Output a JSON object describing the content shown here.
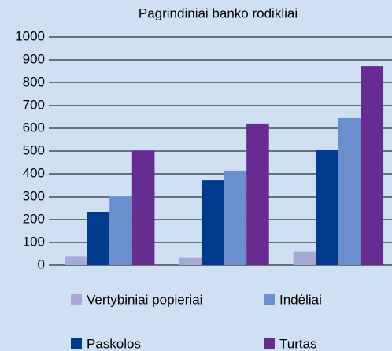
{
  "chart_data": {
    "type": "bar",
    "title": "Pagrindiniai banko rodikliai",
    "categories": [
      null,
      null,
      null
    ],
    "series": [
      {
        "name": "Vertybiniai popieriai",
        "color": "#a9a9d8",
        "values": [
          40,
          32,
          60
        ]
      },
      {
        "name": "Paskolos",
        "color": "#003b8e",
        "values": [
          231,
          372,
          505
        ]
      },
      {
        "name": "Indėliai",
        "color": "#6b8fce",
        "values": [
          303,
          414,
          645
        ]
      },
      {
        "name": "Turtas",
        "color": "#672c91",
        "values": [
          503,
          621,
          872
        ]
      }
    ],
    "ylim": [
      0,
      1000
    ],
    "yticks": [
      0,
      100,
      200,
      300,
      400,
      500,
      600,
      700,
      800,
      900,
      1000
    ],
    "grid": true,
    "legend": "bottom"
  }
}
